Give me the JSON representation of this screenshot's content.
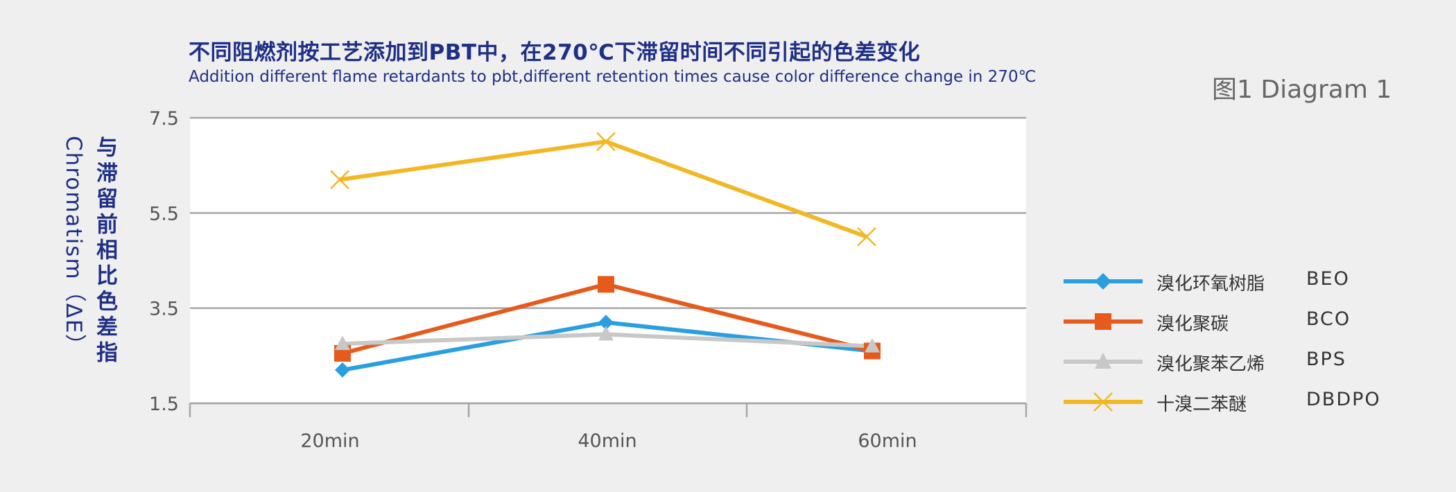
{
  "header": {
    "title_cn": "不同阻燃剂按工艺添加到PBT中，在270℃下滞留时间不同引起的色差变化",
    "title_en": "Addition different flame retardants to pbt,different retention times cause color difference change in 270℃",
    "diagram_label": "图1  Diagram 1"
  },
  "chart_data": {
    "type": "line",
    "title": "不同阻燃剂按工艺添加到PBT中，在270℃下滞留时间不同引起的色差变化",
    "subtitle": "Addition different flame retardants to pbt,different retention times cause color difference change in 270℃",
    "ylabel_cn": "与滞留前相比色差指",
    "ylabel_en": "Chromatism（ΔE）",
    "categories": [
      "20min",
      "40min",
      "60min"
    ],
    "yticks": [
      "7.5",
      "5.5",
      "3.5",
      "1.5"
    ],
    "ylim": [
      1.5,
      7.5
    ],
    "grid": true,
    "legend_position": "right",
    "series": [
      {
        "name": "溴化环氧树脂",
        "code": "BEO",
        "marker": "diamond",
        "color": "#2a9fe0",
        "values": [
          2.2,
          3.2,
          2.6
        ]
      },
      {
        "name": "溴化聚碳",
        "code": "BCO",
        "marker": "square",
        "color": "#e65a1c",
        "values": [
          2.55,
          4.0,
          2.6
        ]
      },
      {
        "name": "溴化聚苯乙烯",
        "code": "BPS",
        "marker": "triangle",
        "color": "#c8c8c8",
        "values": [
          2.75,
          2.95,
          2.7
        ]
      },
      {
        "name": "十溴二苯醚",
        "code": "DBDPO",
        "marker": "x",
        "color": "#f2b824",
        "values": [
          6.2,
          7.0,
          5.0
        ]
      }
    ]
  }
}
